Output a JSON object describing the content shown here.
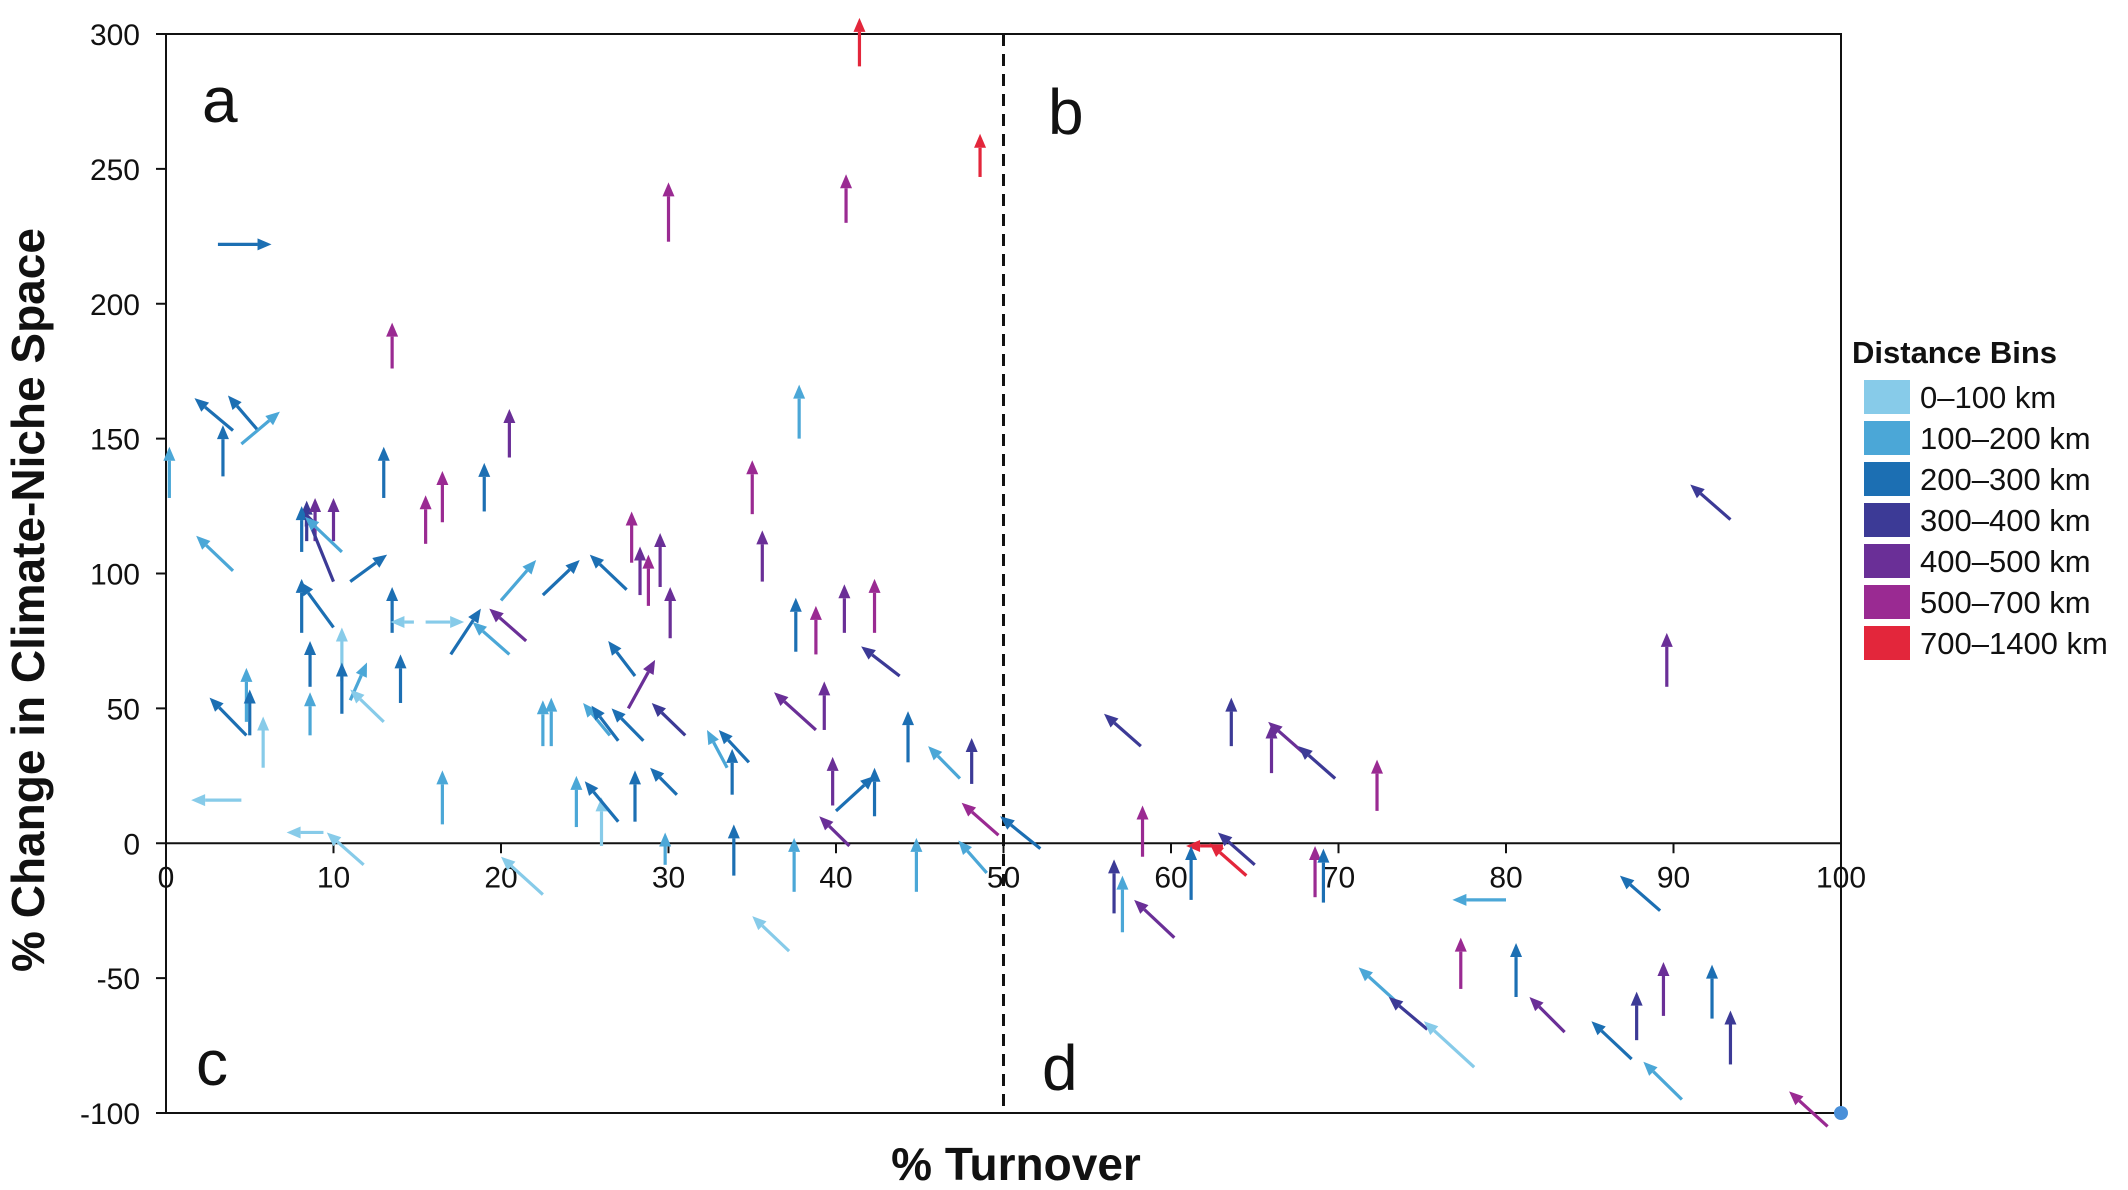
{
  "chart_data": {
    "type": "scatter",
    "mark": "arrow",
    "xlabel": "% Turnover",
    "ylabel": "% Change in Climate-Niche Space",
    "xlim": [
      0,
      100
    ],
    "ylim": [
      -100,
      300
    ],
    "x_ticks": [
      0,
      10,
      20,
      30,
      40,
      50,
      60,
      70,
      80,
      90,
      100
    ],
    "y_ticks": [
      300,
      250,
      200,
      150,
      100,
      50,
      0,
      -50,
      -100
    ],
    "divider_x": 50,
    "quadrant_labels": [
      "a",
      "b",
      "c",
      "d"
    ],
    "legend": {
      "title": "Distance Bins",
      "position": "right",
      "bins": [
        {
          "label": "0–100 km",
          "color": "#87cbe9"
        },
        {
          "label": "100–200 km",
          "color": "#4ba7d7"
        },
        {
          "label": "200–300 km",
          "color": "#1c6fb3"
        },
        {
          "label": "300–400 km",
          "color": "#3c3a96"
        },
        {
          "label": "400–500 km",
          "color": "#6a2f97"
        },
        {
          "label": "500–700 km",
          "color": "#9a2a92"
        },
        {
          "label": "700–1400 km",
          "color": "#e3263b"
        }
      ]
    },
    "arrows": [
      {
        "x": 41.4,
        "y": 288,
        "dx": 0,
        "dy": 18,
        "bin": 6
      },
      {
        "x": 48.6,
        "y": 247,
        "dx": 0,
        "dy": 16,
        "bin": 6
      },
      {
        "x": 63.1,
        "y": -1,
        "dx": -2.2,
        "dy": 0,
        "bin": 6
      },
      {
        "x": 64.5,
        "y": -12,
        "dx": -2.2,
        "dy": 12,
        "bin": 6
      },
      {
        "x": 3.1,
        "y": 222,
        "dx": 3.2,
        "dy": 0,
        "bin": 2
      },
      {
        "x": 0.2,
        "y": 128,
        "dx": 0,
        "dy": 19,
        "bin": 1
      },
      {
        "x": 3.4,
        "y": 136,
        "dx": 0,
        "dy": 19,
        "bin": 2
      },
      {
        "x": 4.0,
        "y": 153,
        "dx": -2.3,
        "dy": 12,
        "bin": 2
      },
      {
        "x": 5.5,
        "y": 153,
        "dx": -1.8,
        "dy": 13,
        "bin": 2
      },
      {
        "x": 4.5,
        "y": 148,
        "dx": 2.3,
        "dy": 12,
        "bin": 1
      },
      {
        "x": 4.0,
        "y": 101,
        "dx": -2.2,
        "dy": 13,
        "bin": 1
      },
      {
        "x": 13.5,
        "y": 176,
        "dx": 0,
        "dy": 17,
        "bin": 5
      },
      {
        "x": 8.4,
        "y": 112,
        "dx": 0,
        "dy": 15,
        "bin": 3
      },
      {
        "x": 8.9,
        "y": 112,
        "dx": 0,
        "dy": 16,
        "bin": 4
      },
      {
        "x": 10.0,
        "y": 112,
        "dx": 0,
        "dy": 16,
        "bin": 4
      },
      {
        "x": 8.1,
        "y": 108,
        "dx": 0,
        "dy": 17,
        "bin": 2
      },
      {
        "x": 10.0,
        "y": 97,
        "dx": -1.7,
        "dy": 26,
        "bin": 3
      },
      {
        "x": 11.0,
        "y": 97,
        "dx": 2.2,
        "dy": 10,
        "bin": 2
      },
      {
        "x": 10.5,
        "y": 108,
        "dx": -2.2,
        "dy": 13,
        "bin": 1
      },
      {
        "x": 13.0,
        "y": 128,
        "dx": 0,
        "dy": 19,
        "bin": 2
      },
      {
        "x": 15.5,
        "y": 111,
        "dx": 0,
        "dy": 18,
        "bin": 5
      },
      {
        "x": 16.5,
        "y": 119,
        "dx": 0,
        "dy": 19,
        "bin": 5
      },
      {
        "x": 19.0,
        "y": 123,
        "dx": 0,
        "dy": 18,
        "bin": 2
      },
      {
        "x": 20.5,
        "y": 143,
        "dx": 0,
        "dy": 18,
        "bin": 4
      },
      {
        "x": 8.1,
        "y": 78,
        "dx": 0,
        "dy": 20,
        "bin": 2
      },
      {
        "x": 10.0,
        "y": 80,
        "dx": -2.0,
        "dy": 17,
        "bin": 2
      },
      {
        "x": 13.5,
        "y": 78,
        "dx": 0,
        "dy": 17,
        "bin": 2
      },
      {
        "x": 17.0,
        "y": 70,
        "dx": 1.8,
        "dy": 17,
        "bin": 2
      },
      {
        "x": 20.0,
        "y": 90,
        "dx": 2.1,
        "dy": 15,
        "bin": 1
      },
      {
        "x": 22.5,
        "y": 92,
        "dx": 2.2,
        "dy": 13,
        "bin": 2
      },
      {
        "x": 21.5,
        "y": 75,
        "dx": -2.2,
        "dy": 12,
        "bin": 4
      },
      {
        "x": 20.5,
        "y": 70,
        "dx": -2.2,
        "dy": 12,
        "bin": 1
      },
      {
        "x": 14.8,
        "y": 82,
        "dx": -1.4,
        "dy": 0,
        "bin": 0
      },
      {
        "x": 15.5,
        "y": 82,
        "dx": 2.3,
        "dy": 0,
        "bin": 0
      },
      {
        "x": 10.5,
        "y": 60,
        "dx": 0,
        "dy": 20,
        "bin": 0
      },
      {
        "x": 8.6,
        "y": 58,
        "dx": 0,
        "dy": 17,
        "bin": 2
      },
      {
        "x": 8.6,
        "y": 40,
        "dx": 0,
        "dy": 16,
        "bin": 1
      },
      {
        "x": 10.5,
        "y": 48,
        "dx": 0,
        "dy": 19,
        "bin": 2
      },
      {
        "x": 11.0,
        "y": 53,
        "dx": 1.0,
        "dy": 14,
        "bin": 1
      },
      {
        "x": 13.0,
        "y": 45,
        "dx": -2.0,
        "dy": 12,
        "bin": 0
      },
      {
        "x": 14.0,
        "y": 52,
        "dx": 0,
        "dy": 18,
        "bin": 2
      },
      {
        "x": 4.8,
        "y": 40,
        "dx": -2.2,
        "dy": 14,
        "bin": 2
      },
      {
        "x": 4.8,
        "y": 45,
        "dx": 0,
        "dy": 20,
        "bin": 1
      },
      {
        "x": 5.0,
        "y": 40,
        "dx": 0,
        "dy": 17,
        "bin": 2
      },
      {
        "x": 5.8,
        "y": 28,
        "dx": 0,
        "dy": 19,
        "bin": 0
      },
      {
        "x": 4.5,
        "y": 16,
        "dx": -3.0,
        "dy": 0,
        "bin": 0
      },
      {
        "x": 16.5,
        "y": 7,
        "dx": 0,
        "dy": 20,
        "bin": 1
      },
      {
        "x": 22.5,
        "y": 36,
        "dx": 0,
        "dy": 17,
        "bin": 1
      },
      {
        "x": 23.0,
        "y": 36,
        "dx": 0,
        "dy": 18,
        "bin": 1
      },
      {
        "x": 24.5,
        "y": 6,
        "dx": 0,
        "dy": 19,
        "bin": 1
      },
      {
        "x": 26.0,
        "y": -1,
        "dx": 0,
        "dy": 18,
        "bin": 0
      },
      {
        "x": 27.0,
        "y": 8,
        "dx": -2.0,
        "dy": 15,
        "bin": 2
      },
      {
        "x": 28.0,
        "y": 8,
        "dx": 0,
        "dy": 19,
        "bin": 2
      },
      {
        "x": 26.5,
        "y": 40,
        "dx": -1.6,
        "dy": 12,
        "bin": 1
      },
      {
        "x": 27.0,
        "y": 38,
        "dx": -1.6,
        "dy": 13,
        "bin": 2
      },
      {
        "x": 28.5,
        "y": 38,
        "dx": -1.9,
        "dy": 12,
        "bin": 2
      },
      {
        "x": 27.6,
        "y": 50,
        "dx": 1.6,
        "dy": 18,
        "bin": 4
      },
      {
        "x": 28.0,
        "y": 62,
        "dx": -1.6,
        "dy": 13,
        "bin": 2
      },
      {
        "x": 27.5,
        "y": 94,
        "dx": -2.2,
        "dy": 13,
        "bin": 2
      },
      {
        "x": 27.8,
        "y": 104,
        "dx": 0,
        "dy": 19,
        "bin": 5
      },
      {
        "x": 28.3,
        "y": 92,
        "dx": 0,
        "dy": 18,
        "bin": 4
      },
      {
        "x": 28.8,
        "y": 88,
        "dx": 0,
        "dy": 19,
        "bin": 5
      },
      {
        "x": 29.5,
        "y": 95,
        "dx": 0,
        "dy": 20,
        "bin": 4
      },
      {
        "x": 30.1,
        "y": 76,
        "dx": 0,
        "dy": 19,
        "bin": 4
      },
      {
        "x": 31.0,
        "y": 40,
        "dx": -2.0,
        "dy": 12,
        "bin": 3
      },
      {
        "x": 30.5,
        "y": 18,
        "dx": -1.6,
        "dy": 10,
        "bin": 2
      },
      {
        "x": 29.8,
        "y": -8,
        "dx": 0,
        "dy": 12,
        "bin": 1
      },
      {
        "x": 30.0,
        "y": 223,
        "dx": 0,
        "dy": 22,
        "bin": 5
      },
      {
        "x": 33.5,
        "y": 28,
        "dx": -1.2,
        "dy": 14,
        "bin": 1
      },
      {
        "x": 34.8,
        "y": 30,
        "dx": -1.8,
        "dy": 12,
        "bin": 2
      },
      {
        "x": 33.8,
        "y": 18,
        "dx": 0,
        "dy": 17,
        "bin": 2
      },
      {
        "x": 33.9,
        "y": -12,
        "dx": 0,
        "dy": 19,
        "bin": 2
      },
      {
        "x": 35.0,
        "y": 122,
        "dx": 0,
        "dy": 20,
        "bin": 5
      },
      {
        "x": 35.6,
        "y": 97,
        "dx": 0,
        "dy": 19,
        "bin": 4
      },
      {
        "x": 37.5,
        "y": -18,
        "dx": 0,
        "dy": 20,
        "bin": 1
      },
      {
        "x": 37.2,
        "y": -40,
        "dx": -2.2,
        "dy": 13,
        "bin": 0
      },
      {
        "x": 37.8,
        "y": 150,
        "dx": 0,
        "dy": 20,
        "bin": 1
      },
      {
        "x": 37.6,
        "y": 71,
        "dx": 0,
        "dy": 20,
        "bin": 2
      },
      {
        "x": 38.8,
        "y": 70,
        "dx": 0,
        "dy": 18,
        "bin": 5
      },
      {
        "x": 39.3,
        "y": 42,
        "dx": 0,
        "dy": 18,
        "bin": 4
      },
      {
        "x": 38.8,
        "y": 42,
        "dx": -2.5,
        "dy": 14,
        "bin": 4
      },
      {
        "x": 39.8,
        "y": 14,
        "dx": 0,
        "dy": 18,
        "bin": 4
      },
      {
        "x": 40.5,
        "y": 78,
        "dx": 0,
        "dy": 18,
        "bin": 4
      },
      {
        "x": 42.3,
        "y": 78,
        "dx": 0,
        "dy": 20,
        "bin": 5
      },
      {
        "x": 43.8,
        "y": 62,
        "dx": -2.3,
        "dy": 11,
        "bin": 3
      },
      {
        "x": 40.0,
        "y": 12,
        "dx": 2.3,
        "dy": 13,
        "bin": 2
      },
      {
        "x": 42.3,
        "y": 10,
        "dx": 0,
        "dy": 18,
        "bin": 2
      },
      {
        "x": 40.8,
        "y": -1,
        "dx": -1.8,
        "dy": 11,
        "bin": 4
      },
      {
        "x": 40.6,
        "y": 230,
        "dx": 0,
        "dy": 18,
        "bin": 5
      },
      {
        "x": 44.3,
        "y": 30,
        "dx": 0,
        "dy": 19,
        "bin": 2
      },
      {
        "x": 44.8,
        "y": -18,
        "dx": 0,
        "dy": 20,
        "bin": 1
      },
      {
        "x": 47.4,
        "y": 24,
        "dx": -1.9,
        "dy": 12,
        "bin": 1
      },
      {
        "x": 48.1,
        "y": 22,
        "dx": 0,
        "dy": 17,
        "bin": 3
      },
      {
        "x": 49.7,
        "y": 3,
        "dx": -2.2,
        "dy": 12,
        "bin": 5
      },
      {
        "x": 49.0,
        "y": -11,
        "dx": -1.7,
        "dy": 12,
        "bin": 1
      },
      {
        "x": 9.4,
        "y": 4,
        "dx": -2.2,
        "dy": 0,
        "bin": 0
      },
      {
        "x": 11.8,
        "y": -8,
        "dx": -2.2,
        "dy": 12,
        "bin": 0
      },
      {
        "x": 22.5,
        "y": -19,
        "dx": -2.5,
        "dy": 14,
        "bin": 0
      },
      {
        "x": 52.2,
        "y": -2,
        "dx": -2.4,
        "dy": 12,
        "bin": 2
      },
      {
        "x": 58.2,
        "y": 36,
        "dx": -2.2,
        "dy": 12,
        "bin": 3
      },
      {
        "x": 56.6,
        "y": -26,
        "dx": 0,
        "dy": 20,
        "bin": 3
      },
      {
        "x": 57.1,
        "y": -33,
        "dx": 0,
        "dy": 21,
        "bin": 1
      },
      {
        "x": 58.3,
        "y": -5,
        "dx": 0,
        "dy": 19,
        "bin": 5
      },
      {
        "x": 60.2,
        "y": -35,
        "dx": -2.4,
        "dy": 14,
        "bin": 4
      },
      {
        "x": 61.2,
        "y": -21,
        "dx": 0,
        "dy": 20,
        "bin": 2
      },
      {
        "x": 63.6,
        "y": 36,
        "dx": 0,
        "dy": 18,
        "bin": 3
      },
      {
        "x": 65.0,
        "y": -8,
        "dx": -2.2,
        "dy": 12,
        "bin": 3
      },
      {
        "x": 66.0,
        "y": 26,
        "dx": 0,
        "dy": 18,
        "bin": 4
      },
      {
        "x": 68.0,
        "y": 33,
        "dx": -2.2,
        "dy": 12,
        "bin": 4
      },
      {
        "x": 69.8,
        "y": 24,
        "dx": -2.2,
        "dy": 12,
        "bin": 3
      },
      {
        "x": 68.6,
        "y": -20,
        "dx": 0,
        "dy": 19,
        "bin": 5
      },
      {
        "x": 69.1,
        "y": -22,
        "dx": 0,
        "dy": 20,
        "bin": 2
      },
      {
        "x": 72.3,
        "y": 12,
        "dx": 0,
        "dy": 19,
        "bin": 5
      },
      {
        "x": 93.4,
        "y": 120,
        "dx": -2.4,
        "dy": 13,
        "bin": 3
      },
      {
        "x": 89.6,
        "y": 58,
        "dx": 0,
        "dy": 20,
        "bin": 4
      },
      {
        "x": 80.0,
        "y": -21,
        "dx": -3.2,
        "dy": 0,
        "bin": 1
      },
      {
        "x": 89.2,
        "y": -25,
        "dx": -2.4,
        "dy": 13,
        "bin": 2
      },
      {
        "x": 73.5,
        "y": -59,
        "dx": -2.3,
        "dy": 13,
        "bin": 1
      },
      {
        "x": 75.3,
        "y": -69,
        "dx": -2.3,
        "dy": 12,
        "bin": 3
      },
      {
        "x": 77.3,
        "y": -54,
        "dx": 0,
        "dy": 19,
        "bin": 5
      },
      {
        "x": 78.1,
        "y": -83,
        "dx": -3.0,
        "dy": 17,
        "bin": 0
      },
      {
        "x": 80.6,
        "y": -57,
        "dx": 0,
        "dy": 20,
        "bin": 2
      },
      {
        "x": 83.5,
        "y": -70,
        "dx": -2.1,
        "dy": 13,
        "bin": 4
      },
      {
        "x": 87.5,
        "y": -80,
        "dx": -2.4,
        "dy": 14,
        "bin": 2
      },
      {
        "x": 87.8,
        "y": -73,
        "dx": 0,
        "dy": 18,
        "bin": 3
      },
      {
        "x": 89.4,
        "y": -64,
        "dx": 0,
        "dy": 20,
        "bin": 4
      },
      {
        "x": 90.5,
        "y": -95,
        "dx": -2.3,
        "dy": 14,
        "bin": 1
      },
      {
        "x": 92.3,
        "y": -65,
        "dx": 0,
        "dy": 20,
        "bin": 2
      },
      {
        "x": 93.4,
        "y": -82,
        "dx": 0,
        "dy": 20,
        "bin": 3
      },
      {
        "x": 99.2,
        "y": -105,
        "dx": -2.3,
        "dy": 13,
        "bin": 5
      }
    ],
    "points": [
      {
        "x": 100,
        "y": -100,
        "color": "#4a90d9"
      }
    ]
  }
}
